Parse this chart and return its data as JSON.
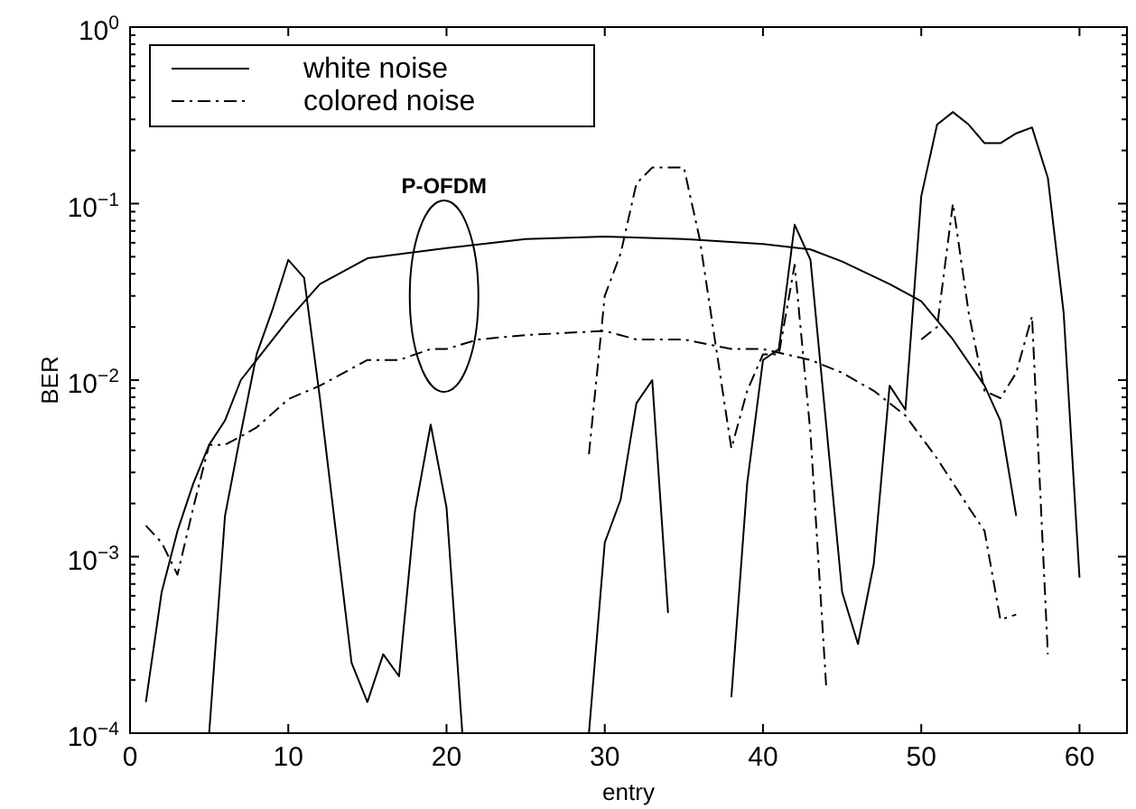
{
  "chart_data": {
    "type": "line",
    "xlabel": "entry",
    "ylabel": "BER",
    "log": "y",
    "grid": false,
    "legend": "top left",
    "xlim": [
      0,
      63
    ],
    "xticks": [
      0,
      10,
      20,
      30,
      40,
      50,
      60
    ],
    "ylim": [
      0.0001,
      1
    ],
    "yticks": [
      {
        "value": 0.0001,
        "label": "10$^{−4}$"
      },
      {
        "value": 0.001,
        "label": "10$^{−3}$"
      },
      {
        "value": 0.01,
        "label": "10$^{−2}$"
      },
      {
        "value": 0.1,
        "label": "10$^{−1}$"
      },
      {
        "value": 1,
        "label": "10$^{0}$"
      }
    ],
    "annotations": [
      "P-OFDM"
    ],
    "series": [
      {
        "name": "white noise",
        "color": "#000000",
        "line_style": "solid",
        "x": [
          5,
          6,
          7,
          8,
          9,
          10,
          11,
          12,
          13,
          14,
          15,
          16,
          17,
          18,
          19,
          20,
          21,
          22,
          23,
          24,
          25,
          26,
          27,
          28,
          29,
          30,
          31,
          32,
          33,
          34,
          35,
          36,
          37,
          38,
          39,
          40,
          41,
          42,
          43,
          44,
          45,
          46,
          47,
          48,
          49,
          50,
          51,
          52,
          53,
          54,
          55,
          56,
          57,
          58,
          59,
          60
        ],
        "values": [
          0.0001,
          0.0017,
          0.005,
          0.014,
          0.025,
          0.048,
          0.038,
          0.0079,
          0.0014,
          0.00025,
          0.00015,
          0.00028,
          0.00021,
          0.0018,
          0.0056,
          0.0019,
          0.0001,
          null,
          null,
          null,
          null,
          null,
          null,
          null,
          0.0001,
          0.0012,
          0.0021,
          0.0074,
          0.01,
          0.00048,
          null,
          null,
          null,
          0.00016,
          0.0026,
          0.013,
          0.015,
          0.076,
          0.048,
          0.0055,
          0.00063,
          0.00032,
          0.00091,
          0.0093,
          0.0068,
          0.11,
          0.28,
          0.33,
          0.28,
          0.22,
          0.22,
          0.25,
          0.27,
          0.14,
          0.024,
          0.00076
        ]
      },
      {
        "name": "colored noise",
        "color": "#000000",
        "line_style": "dashdot",
        "x": [
          29,
          30,
          31,
          32,
          33,
          34,
          35,
          36,
          37,
          38,
          39,
          40,
          41,
          42,
          43,
          44,
          45,
          46,
          47,
          48,
          49,
          50,
          51,
          52,
          53,
          54,
          55,
          56,
          57,
          58
        ],
        "values": [
          0.0038,
          0.03,
          0.052,
          0.13,
          0.16,
          0.16,
          0.16,
          0.063,
          0.016,
          0.0041,
          0.0087,
          0.014,
          0.014,
          0.045,
          0.005,
          0.00018,
          null,
          null,
          null,
          null,
          null,
          0.017,
          0.02,
          0.1,
          0.024,
          0.0087,
          0.0079,
          0.011,
          0.023,
          0.00028
        ]
      },
      {
        "color": "#000000",
        "line_style": "solid",
        "x": [
          1,
          2,
          3,
          4,
          5,
          6,
          7,
          8,
          10,
          12,
          15,
          20,
          25,
          30,
          35,
          40,
          43,
          45,
          48,
          50,
          52,
          54,
          55,
          56
        ],
        "values": [
          0.00015,
          0.00063,
          0.0014,
          0.0026,
          0.0043,
          0.0059,
          0.01,
          0.013,
          0.022,
          0.035,
          0.049,
          0.056,
          0.063,
          0.065,
          0.063,
          0.059,
          0.055,
          0.047,
          0.035,
          0.028,
          0.017,
          0.0093,
          0.0059,
          0.0017
        ]
      },
      {
        "color": "#000000",
        "line_style": "dashdot",
        "x": [
          1,
          2,
          3,
          4,
          5,
          6,
          7,
          8,
          10,
          12,
          15,
          17,
          19,
          20,
          22,
          25,
          30,
          32,
          35,
          38,
          40,
          43,
          45,
          47,
          49,
          51,
          53,
          54,
          55,
          56
        ],
        "values": [
          0.0015,
          0.0012,
          0.00079,
          0.0019,
          0.0043,
          0.0043,
          0.0048,
          0.0054,
          0.0078,
          0.0093,
          0.013,
          0.013,
          0.015,
          0.015,
          0.017,
          0.018,
          0.019,
          0.017,
          0.017,
          0.015,
          0.015,
          0.013,
          0.011,
          0.0087,
          0.0063,
          0.0036,
          0.0019,
          0.0014,
          0.00044,
          0.00047
        ]
      }
    ]
  }
}
